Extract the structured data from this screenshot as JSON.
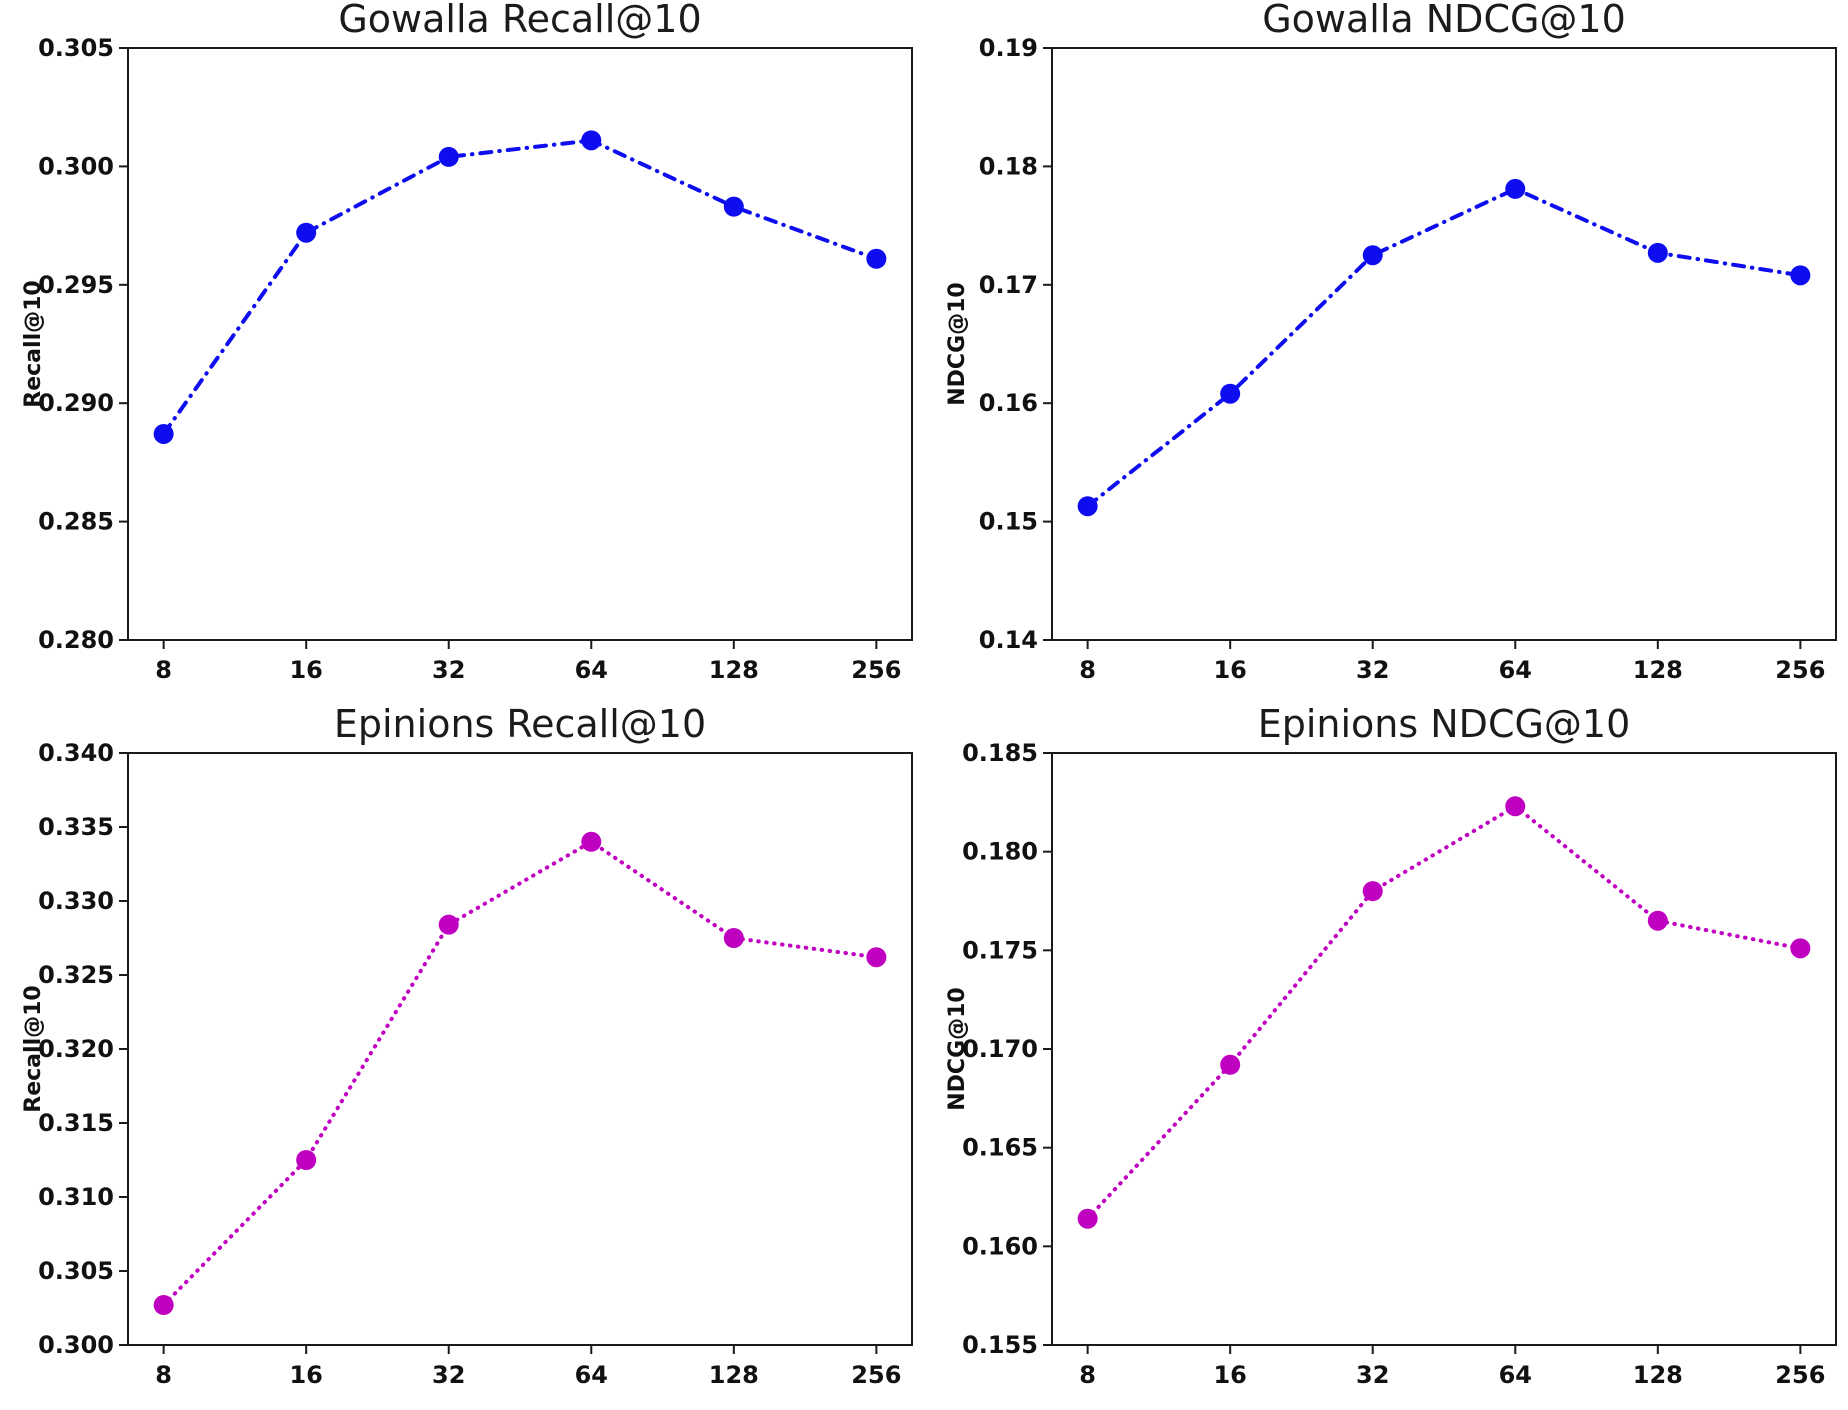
{
  "figure": {
    "background": "#ffffff",
    "axis_color": "#1a1a1a",
    "text_color": "#111111"
  },
  "chart_data": [
    {
      "type": "line",
      "title": "Gowalla Recall@10",
      "ylabel": "Recall@10",
      "xlabel": "",
      "categories": [
        "8",
        "16",
        "32",
        "64",
        "128",
        "256"
      ],
      "values": [
        0.2887,
        0.2972,
        0.3004,
        0.3011,
        0.2983,
        0.2961
      ],
      "ylim": [
        0.28,
        0.305
      ],
      "yticks": [
        0.28,
        0.285,
        0.29,
        0.295,
        0.3,
        0.305
      ],
      "ytick_labels": [
        "0.280",
        "0.285",
        "0.290",
        "0.295",
        "0.300",
        "0.305"
      ],
      "color": "#0d0df0",
      "linestyle": "dashdot",
      "marker": "circle",
      "grid": false,
      "legend": null
    },
    {
      "type": "line",
      "title": "Gowalla NDCG@10",
      "ylabel": "NDCG@10",
      "xlabel": "",
      "categories": [
        "8",
        "16",
        "32",
        "64",
        "128",
        "256"
      ],
      "values": [
        0.1513,
        0.1608,
        0.1725,
        0.1781,
        0.1727,
        0.1708
      ],
      "ylim": [
        0.14,
        0.19
      ],
      "yticks": [
        0.14,
        0.15,
        0.16,
        0.17,
        0.18,
        0.19
      ],
      "ytick_labels": [
        "0.14",
        "0.15",
        "0.16",
        "0.17",
        "0.18",
        "0.19"
      ],
      "color": "#0d0df0",
      "linestyle": "dashdot",
      "marker": "circle",
      "grid": false,
      "legend": null
    },
    {
      "type": "line",
      "title": "Epinions Recall@10",
      "ylabel": "Recall@10",
      "xlabel": "",
      "categories": [
        "8",
        "16",
        "32",
        "64",
        "128",
        "256"
      ],
      "values": [
        0.3027,
        0.3125,
        0.3284,
        0.334,
        0.3275,
        0.3262
      ],
      "ylim": [
        0.3,
        0.34
      ],
      "yticks": [
        0.3,
        0.305,
        0.31,
        0.315,
        0.32,
        0.325,
        0.33,
        0.335,
        0.34
      ],
      "ytick_labels": [
        "0.300",
        "0.305",
        "0.310",
        "0.315",
        "0.320",
        "0.325",
        "0.330",
        "0.335",
        "0.340"
      ],
      "color": "#c000c0",
      "linestyle": "dotted",
      "marker": "circle",
      "grid": false,
      "legend": null
    },
    {
      "type": "line",
      "title": "Epinions NDCG@10",
      "ylabel": "NDCG@10",
      "xlabel": "",
      "categories": [
        "8",
        "16",
        "32",
        "64",
        "128",
        "256"
      ],
      "values": [
        0.1614,
        0.1692,
        0.178,
        0.1823,
        0.1765,
        0.1751
      ],
      "ylim": [
        0.155,
        0.185
      ],
      "yticks": [
        0.155,
        0.16,
        0.165,
        0.17,
        0.175,
        0.18,
        0.185
      ],
      "ytick_labels": [
        "0.155",
        "0.160",
        "0.165",
        "0.170",
        "0.175",
        "0.180",
        "0.185"
      ],
      "color": "#c000c0",
      "linestyle": "dotted",
      "marker": "circle",
      "grid": false,
      "legend": null
    }
  ]
}
